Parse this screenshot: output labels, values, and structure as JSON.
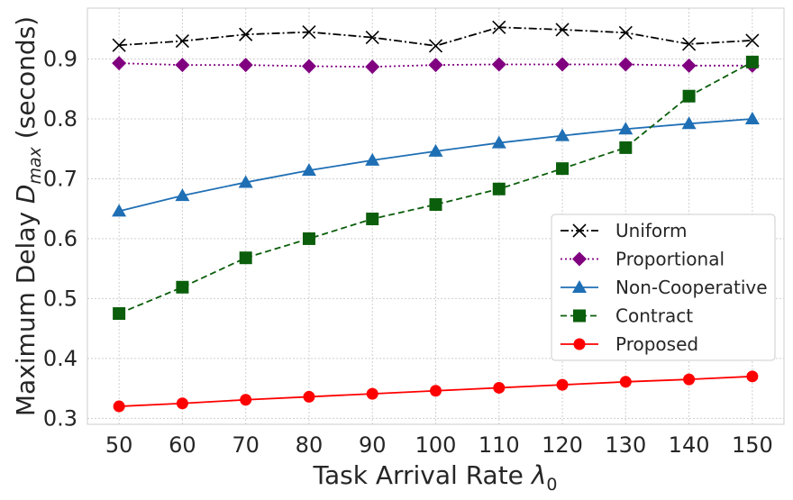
{
  "chart_data": {
    "type": "line",
    "xlabel": "Task Arrival Rate λ₀",
    "ylabel": "Maximum Delay D_max (seconds)",
    "x": [
      50,
      60,
      70,
      80,
      90,
      100,
      110,
      120,
      130,
      140,
      150
    ],
    "xlim": [
      45,
      155
    ],
    "ylim": [
      0.29,
      0.985
    ],
    "yticks": [
      0.3,
      0.4,
      0.5,
      0.6,
      0.7,
      0.8,
      0.9
    ],
    "grid": true,
    "legend_position": "center-right",
    "series": [
      {
        "name": "Uniform",
        "color": "#000000",
        "marker": "x",
        "line_style": "dashdot",
        "values": [
          0.923,
          0.93,
          0.941,
          0.945,
          0.936,
          0.922,
          0.953,
          0.949,
          0.944,
          0.925,
          0.931
        ]
      },
      {
        "name": "Proportional",
        "color": "#800080",
        "marker": "diamond",
        "line_style": "dotted",
        "values": [
          0.893,
          0.89,
          0.89,
          0.888,
          0.887,
          0.89,
          0.891,
          0.891,
          0.891,
          0.889,
          0.889
        ]
      },
      {
        "name": "Non-Cooperative",
        "color": "#1f6fb5",
        "marker": "triangle",
        "line_style": "solid",
        "values": [
          0.646,
          0.672,
          0.694,
          0.714,
          0.731,
          0.746,
          0.76,
          0.772,
          0.783,
          0.792,
          0.8
        ]
      },
      {
        "name": "Contract",
        "color": "#0b5e0b",
        "marker": "square",
        "line_style": "dashed",
        "values": [
          0.475,
          0.519,
          0.568,
          0.6,
          0.633,
          0.657,
          0.683,
          0.717,
          0.752,
          0.838,
          0.895
        ]
      },
      {
        "name": "Proposed",
        "color": "#ff0000",
        "marker": "circle",
        "line_style": "solid",
        "values": [
          0.32,
          0.325,
          0.331,
          0.336,
          0.341,
          0.346,
          0.351,
          0.356,
          0.361,
          0.365,
          0.37
        ]
      }
    ]
  }
}
